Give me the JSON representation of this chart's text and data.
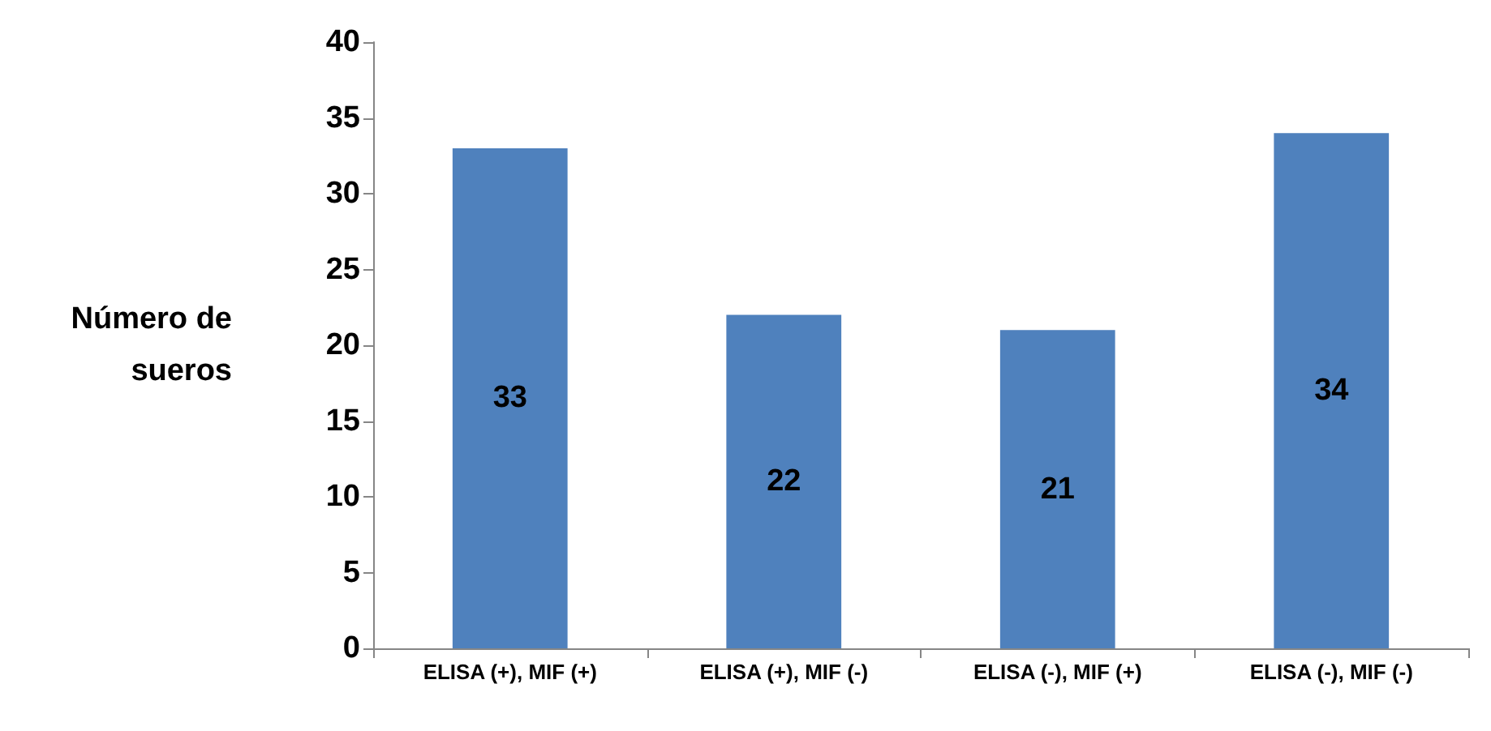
{
  "chart_data": {
    "type": "bar",
    "ylabel": "Número de\nsueros",
    "categories": [
      "ELISA (+), MIF (+)",
      "ELISA (+), MIF (-)",
      "ELISA (-), MIF (+)",
      "ELISA (-), MIF (-)"
    ],
    "values": [
      33,
      22,
      21,
      34
    ],
    "color": "#4f81bd",
    "ylim": [
      0,
      40
    ],
    "yticks": [
      0,
      5,
      10,
      15,
      20,
      25,
      30,
      35,
      40
    ],
    "grid": false,
    "data_labels": true
  }
}
